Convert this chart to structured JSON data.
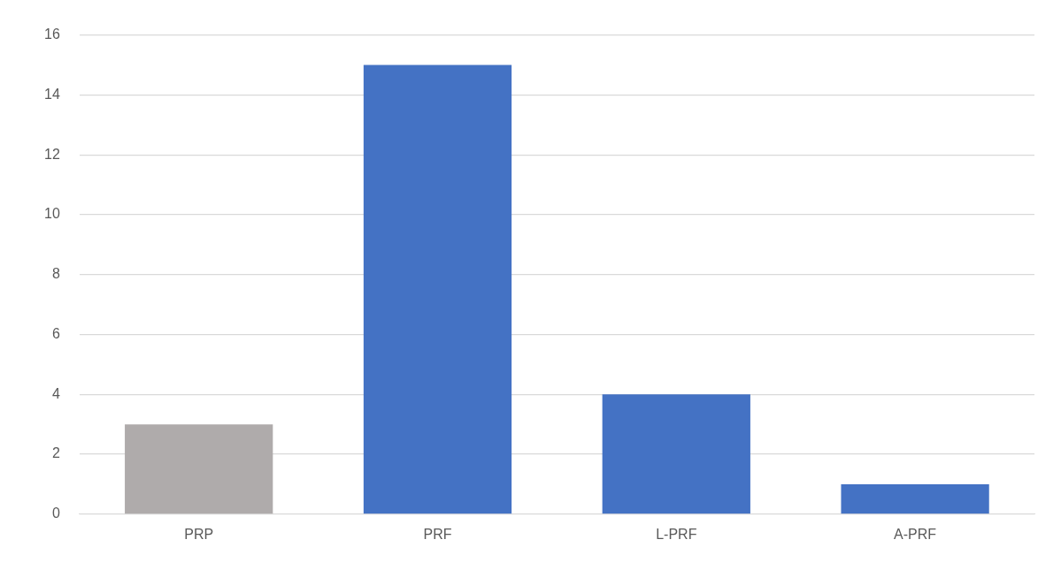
{
  "chart_data": {
    "type": "bar",
    "categories": [
      "PRP",
      "PRF",
      "L-PRF",
      "A-PRF"
    ],
    "values": [
      3,
      15,
      4,
      1
    ],
    "colors": [
      "#afabab",
      "#4472c4",
      "#4472c4",
      "#4472c4"
    ],
    "ylim": [
      0,
      16
    ],
    "yticks": [
      0,
      2,
      4,
      6,
      8,
      10,
      12,
      14,
      16
    ],
    "grid": "y",
    "legend": false
  }
}
